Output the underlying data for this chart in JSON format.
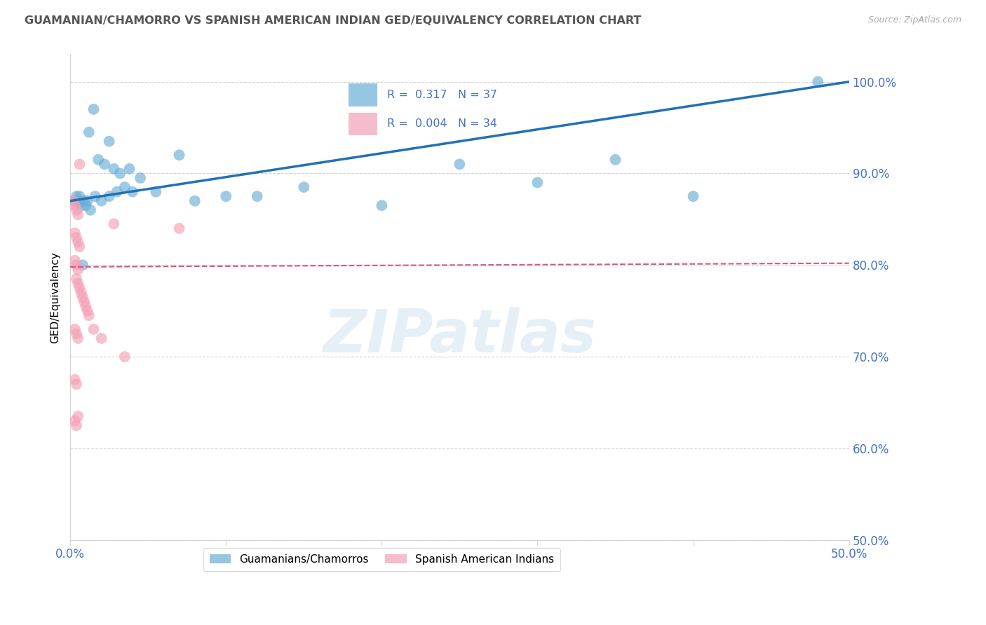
{
  "title": "GUAMANIAN/CHAMORRO VS SPANISH AMERICAN INDIAN GED/EQUIVALENCY CORRELATION CHART",
  "source": "Source: ZipAtlas.com",
  "ylabel": "GED/Equivalency",
  "yticks": [
    50.0,
    60.0,
    70.0,
    80.0,
    90.0,
    100.0
  ],
  "ytick_labels": [
    "50.0%",
    "60.0%",
    "70.0%",
    "80.0%",
    "90.0%",
    "100.0%"
  ],
  "xlim": [
    0.0,
    50.0
  ],
  "ylim": [
    50.0,
    103.0
  ],
  "legend_blue_r": "0.317",
  "legend_blue_n": "37",
  "legend_pink_r": "0.004",
  "legend_pink_n": "34",
  "legend_blue_label": "Guamanians/Chamorros",
  "legend_pink_label": "Spanish American Indians",
  "watermark": "ZIPatlas",
  "blue_color": "#6baed6",
  "pink_color": "#f4a0b5",
  "blue_line_color": "#2171b5",
  "pink_line_color": "#e05080",
  "axis_label_color": "#4472c4",
  "title_color": "#555555",
  "blue_scatter_x": [
    1.5,
    2.5,
    1.2,
    1.8,
    2.2,
    2.8,
    3.2,
    3.8,
    4.5,
    5.5,
    7.0,
    10.0,
    15.0,
    20.0,
    30.0,
    48.0,
    0.3,
    0.5,
    0.7,
    1.0,
    1.3,
    0.4,
    0.6,
    0.9,
    1.1,
    1.6,
    2.0,
    2.5,
    3.0,
    3.5,
    4.0,
    8.0,
    12.0,
    25.0,
    35.0,
    40.0,
    0.8
  ],
  "blue_scatter_y": [
    97.0,
    93.5,
    94.5,
    91.5,
    91.0,
    90.5,
    90.0,
    90.5,
    89.5,
    88.0,
    92.0,
    87.5,
    88.5,
    86.5,
    89.0,
    100.0,
    87.0,
    87.0,
    86.5,
    86.5,
    86.0,
    87.5,
    87.5,
    87.0,
    87.0,
    87.5,
    87.0,
    87.5,
    88.0,
    88.5,
    88.0,
    87.0,
    87.5,
    91.0,
    91.5,
    87.5,
    80.0
  ],
  "pink_scatter_x": [
    0.2,
    0.3,
    0.4,
    0.5,
    0.3,
    0.4,
    0.5,
    0.6,
    0.3,
    0.4,
    0.5,
    0.4,
    0.5,
    0.6,
    0.7,
    0.8,
    0.9,
    1.0,
    1.1,
    1.2,
    0.3,
    0.4,
    0.5,
    1.5,
    2.0,
    3.5,
    0.3,
    0.4,
    0.5,
    0.3,
    0.4,
    7.0,
    2.8,
    0.6
  ],
  "pink_scatter_y": [
    87.0,
    86.5,
    86.0,
    85.5,
    83.5,
    83.0,
    82.5,
    82.0,
    80.5,
    80.0,
    79.5,
    78.5,
    78.0,
    77.5,
    77.0,
    76.5,
    76.0,
    75.5,
    75.0,
    74.5,
    73.0,
    72.5,
    72.0,
    73.0,
    72.0,
    70.0,
    67.5,
    67.0,
    63.5,
    63.0,
    62.5,
    84.0,
    84.5,
    91.0
  ]
}
